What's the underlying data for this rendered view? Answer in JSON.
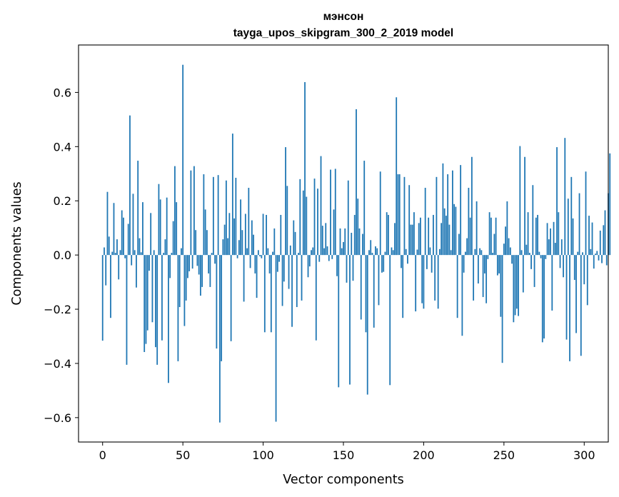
{
  "chart_data": {
    "type": "bar",
    "title": "мэнсон",
    "subtitle": "tayga_upos_skipgram_300_2_2019 model",
    "xlabel": "Vector components",
    "ylabel": "Components values",
    "xlim": [
      -15,
      315
    ],
    "ylim": [
      -0.69,
      0.775
    ],
    "xticks": [
      0,
      50,
      100,
      150,
      200,
      250,
      300
    ],
    "yticks": [
      -0.6,
      -0.4,
      -0.2,
      0.0,
      0.2,
      0.4,
      0.6
    ],
    "ytick_labels": [
      "−0.6",
      "−0.4",
      "−0.2",
      "0.0",
      "0.2",
      "0.4",
      "0.6"
    ],
    "bar_color": "#1f77b4",
    "grid": false,
    "series": [
      {
        "name": "мэнсон",
        "values": [
          -0.316,
          0.028,
          -0.112,
          0.233,
          0.068,
          -0.232,
          0.012,
          0.192,
          0.008,
          0.058,
          -0.09,
          0.018,
          0.165,
          0.138,
          -0.012,
          -0.405,
          0.115,
          0.515,
          -0.038,
          0.226,
          0.018,
          -0.12,
          0.348,
          0.062,
          0.01,
          0.195,
          -0.358,
          -0.328,
          -0.278,
          -0.058,
          0.155,
          -0.248,
          0.018,
          -0.34,
          -0.405,
          0.262,
          0.205,
          -0.315,
          0.008,
          0.058,
          0.212,
          -0.472,
          -0.085,
          0.008,
          0.125,
          0.328,
          0.195,
          -0.392,
          -0.192,
          0.025,
          0.702,
          -0.262,
          -0.168,
          -0.085,
          -0.06,
          0.312,
          -0.05,
          0.328,
          0.092,
          -0.04,
          -0.072,
          -0.15,
          -0.118,
          0.298,
          0.168,
          0.092,
          -0.068,
          -0.118,
          0.008,
          0.288,
          -0.032,
          -0.345,
          0.295,
          -0.618,
          -0.392,
          0.058,
          0.112,
          0.275,
          0.062,
          0.155,
          -0.318,
          0.448,
          0.135,
          0.285,
          -0.012,
          0.055,
          0.205,
          0.092,
          -0.172,
          0.152,
          0.025,
          0.248,
          -0.048,
          0.128,
          0.075,
          -0.068,
          -0.158,
          0.018,
          -0.005,
          -0.012,
          0.152,
          -0.285,
          0.148,
          0.025,
          -0.068,
          -0.285,
          0.012,
          0.098,
          -0.615,
          -0.062,
          -0.025,
          0.148,
          -0.188,
          -0.098,
          0.398,
          0.255,
          -0.125,
          0.035,
          -0.265,
          0.128,
          0.085,
          -0.192,
          0.008,
          0.28,
          -0.168,
          0.238,
          0.638,
          0.215,
          -0.082,
          -0.042,
          0.018,
          0.028,
          0.282,
          -0.315,
          0.245,
          -0.025,
          0.365,
          0.108,
          0.025,
          0.118,
          0.032,
          -0.022,
          0.315,
          -0.015,
          0.168,
          0.318,
          -0.078,
          -0.488,
          0.098,
          0.025,
          0.048,
          0.098,
          -0.102,
          0.275,
          -0.478,
          0.082,
          -0.095,
          0.148,
          0.538,
          0.208,
          0.098,
          -0.238,
          0.078,
          0.348,
          -0.285,
          -0.515,
          0.018,
          0.055,
          0.008,
          -0.268,
          0.032,
          0.025,
          -0.185,
          0.308,
          -0.065,
          -0.062,
          0.012,
          0.158,
          0.148,
          -0.48,
          0.028,
          0.018,
          0.118,
          0.582,
          0.298,
          0.298,
          -0.048,
          -0.232,
          0.288,
          0.022,
          -0.032,
          0.258,
          0.112,
          0.112,
          0.158,
          -0.208,
          0.02,
          0.118,
          0.138,
          -0.178,
          -0.198,
          0.248,
          -0.052,
          0.138,
          0.028,
          -0.065,
          0.148,
          -0.168,
          0.288,
          -0.198,
          0.022,
          0.118,
          0.338,
          0.172,
          0.145,
          0.298,
          0.112,
          0.018,
          0.312,
          0.188,
          0.178,
          -0.232,
          0.078,
          0.332,
          -0.298,
          -0.065,
          0.012,
          0.062,
          0.248,
          0.138,
          0.362,
          -0.168,
          0.022,
          0.198,
          -0.105,
          0.025,
          0.018,
          -0.155,
          -0.068,
          -0.178,
          -0.015,
          0.158,
          0.138,
          0.008,
          0.078,
          0.138,
          -0.075,
          -0.068,
          -0.228,
          -0.398,
          0.042,
          0.105,
          0.198,
          0.062,
          0.028,
          -0.032,
          -0.248,
          -0.222,
          -0.198,
          -0.225,
          0.402,
          0.018,
          -0.138,
          0.362,
          0.038,
          0.158,
          0.008,
          -0.052,
          0.258,
          -0.118,
          0.138,
          0.148,
          0.012,
          -0.012,
          -0.322,
          -0.308,
          -0.015,
          0.118,
          0.058,
          0.098,
          -0.205,
          0.122,
          0.045,
          0.398,
          0.158,
          -0.048,
          0.058,
          -0.082,
          0.432,
          -0.312,
          0.208,
          -0.392,
          0.288,
          0.135,
          -0.092,
          -0.288,
          0.012,
          0.228,
          -0.372,
          0.01,
          -0.108,
          0.308,
          -0.185,
          0.145,
          0.022,
          0.12,
          -0.05,
          0.005,
          0.015,
          -0.02,
          0.09,
          -0.03,
          0.11,
          0.165,
          -0.038,
          0.228,
          0.375
        ]
      }
    ]
  }
}
